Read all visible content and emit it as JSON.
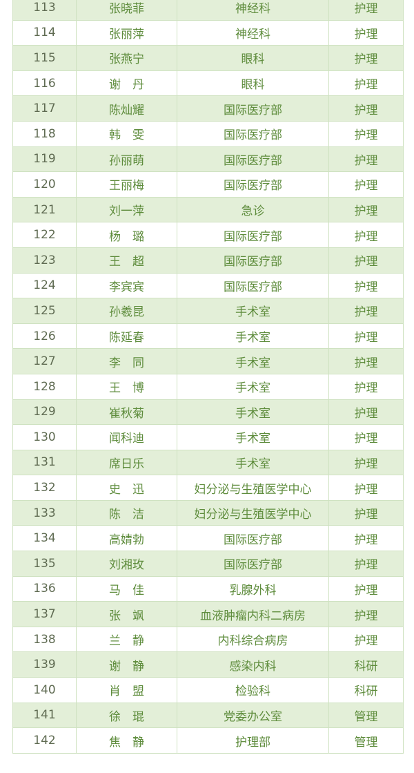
{
  "table": {
    "rows": [
      {
        "no": "113",
        "name": "张晓菲",
        "dept": "神经科",
        "type": "护理"
      },
      {
        "no": "114",
        "name": "张丽萍",
        "dept": "神经科",
        "type": "护理"
      },
      {
        "no": "115",
        "name": "张燕宁",
        "dept": "眼科",
        "type": "护理"
      },
      {
        "no": "116",
        "name": "谢　丹",
        "dept": "眼科",
        "type": "护理"
      },
      {
        "no": "117",
        "name": "陈灿耀",
        "dept": "国际医疗部",
        "type": "护理"
      },
      {
        "no": "118",
        "name": "韩　雯",
        "dept": "国际医疗部",
        "type": "护理"
      },
      {
        "no": "119",
        "name": "孙丽萌",
        "dept": "国际医疗部",
        "type": "护理"
      },
      {
        "no": "120",
        "name": "王丽梅",
        "dept": "国际医疗部",
        "type": "护理"
      },
      {
        "no": "121",
        "name": "刘一萍",
        "dept": "急诊",
        "type": "护理"
      },
      {
        "no": "122",
        "name": "杨　璐",
        "dept": "国际医疗部",
        "type": "护理"
      },
      {
        "no": "123",
        "name": "王　超",
        "dept": "国际医疗部",
        "type": "护理"
      },
      {
        "no": "124",
        "name": "李宾宾",
        "dept": "国际医疗部",
        "type": "护理"
      },
      {
        "no": "125",
        "name": "孙羲昆",
        "dept": "手术室",
        "type": "护理"
      },
      {
        "no": "126",
        "name": "陈延春",
        "dept": "手术室",
        "type": "护理"
      },
      {
        "no": "127",
        "name": "李　同",
        "dept": "手术室",
        "type": "护理"
      },
      {
        "no": "128",
        "name": "王　博",
        "dept": "手术室",
        "type": "护理"
      },
      {
        "no": "129",
        "name": "崔秋菊",
        "dept": "手术室",
        "type": "护理"
      },
      {
        "no": "130",
        "name": "闻科迪",
        "dept": "手术室",
        "type": "护理"
      },
      {
        "no": "131",
        "name": "席日乐",
        "dept": "手术室",
        "type": "护理"
      },
      {
        "no": "132",
        "name": "史　迅",
        "dept": "妇分泌与生殖医学中心",
        "type": "护理"
      },
      {
        "no": "133",
        "name": "陈　洁",
        "dept": "妇分泌与生殖医学中心",
        "type": "护理"
      },
      {
        "no": "134",
        "name": "高婧勃",
        "dept": "国际医疗部",
        "type": "护理"
      },
      {
        "no": "135",
        "name": "刘湘玫",
        "dept": "国际医疗部",
        "type": "护理"
      },
      {
        "no": "136",
        "name": "马　佳",
        "dept": "乳腺外科",
        "type": "护理"
      },
      {
        "no": "137",
        "name": "张　飒",
        "dept": "血液肿瘤内科二病房",
        "type": "护理"
      },
      {
        "no": "138",
        "name": "兰　静",
        "dept": "内科综合病房",
        "type": "护理"
      },
      {
        "no": "139",
        "name": "谢　静",
        "dept": "感染内科",
        "type": "科研"
      },
      {
        "no": "140",
        "name": "肖　盟",
        "dept": "检验科",
        "type": "科研"
      },
      {
        "no": "141",
        "name": "徐　琨",
        "dept": "党委办公室",
        "type": "管理"
      },
      {
        "no": "142",
        "name": "焦　静",
        "dept": "护理部",
        "type": "管理"
      }
    ]
  }
}
